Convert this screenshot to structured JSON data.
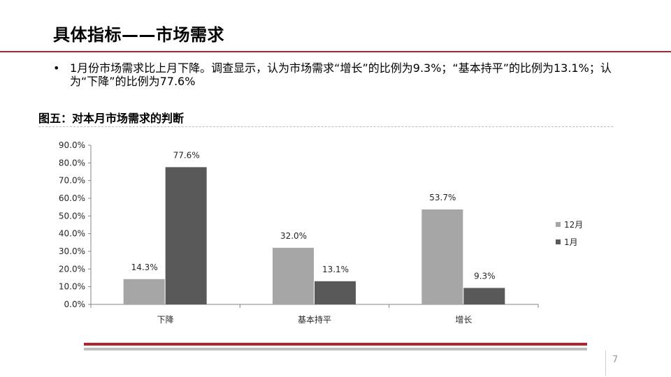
{
  "slide": {
    "title": "具体指标——市场需求",
    "bullet_symbol": "•",
    "bullet": "1月份市场需求比上月下降。调查显示，认为市场需求“增长”的比例为9.3%；“基本持平”的比例为13.1%；认为“下降”的比例为77.6%",
    "figure_title": "图五：对本月市场需求的判断",
    "page_number": "7"
  },
  "colors": {
    "accent_red": "#b3252b",
    "rule_gray": "#bfbfbf",
    "series_light": "#a6a6a6",
    "series_dark": "#595959"
  },
  "chart_data": {
    "type": "bar",
    "categories": [
      "下降",
      "基本持平",
      "增长"
    ],
    "series": [
      {
        "name": "12月",
        "values": [
          14.3,
          32.0,
          53.7
        ],
        "labels": [
          "14.3%",
          "32.0%",
          "53.7%"
        ],
        "color": "#a6a6a6"
      },
      {
        "name": "1月",
        "values": [
          77.6,
          13.1,
          9.3
        ],
        "labels": [
          "77.6%",
          "13.1%",
          "9.3%"
        ],
        "color": "#595959"
      }
    ],
    "ylim": [
      0,
      90
    ],
    "yticks": [
      "0.0%",
      "10.0%",
      "20.0%",
      "30.0%",
      "40.0%",
      "50.0%",
      "60.0%",
      "70.0%",
      "80.0%",
      "90.0%"
    ],
    "title": "",
    "xlabel": "",
    "ylabel": "",
    "grid": false,
    "legend_position": "right"
  }
}
